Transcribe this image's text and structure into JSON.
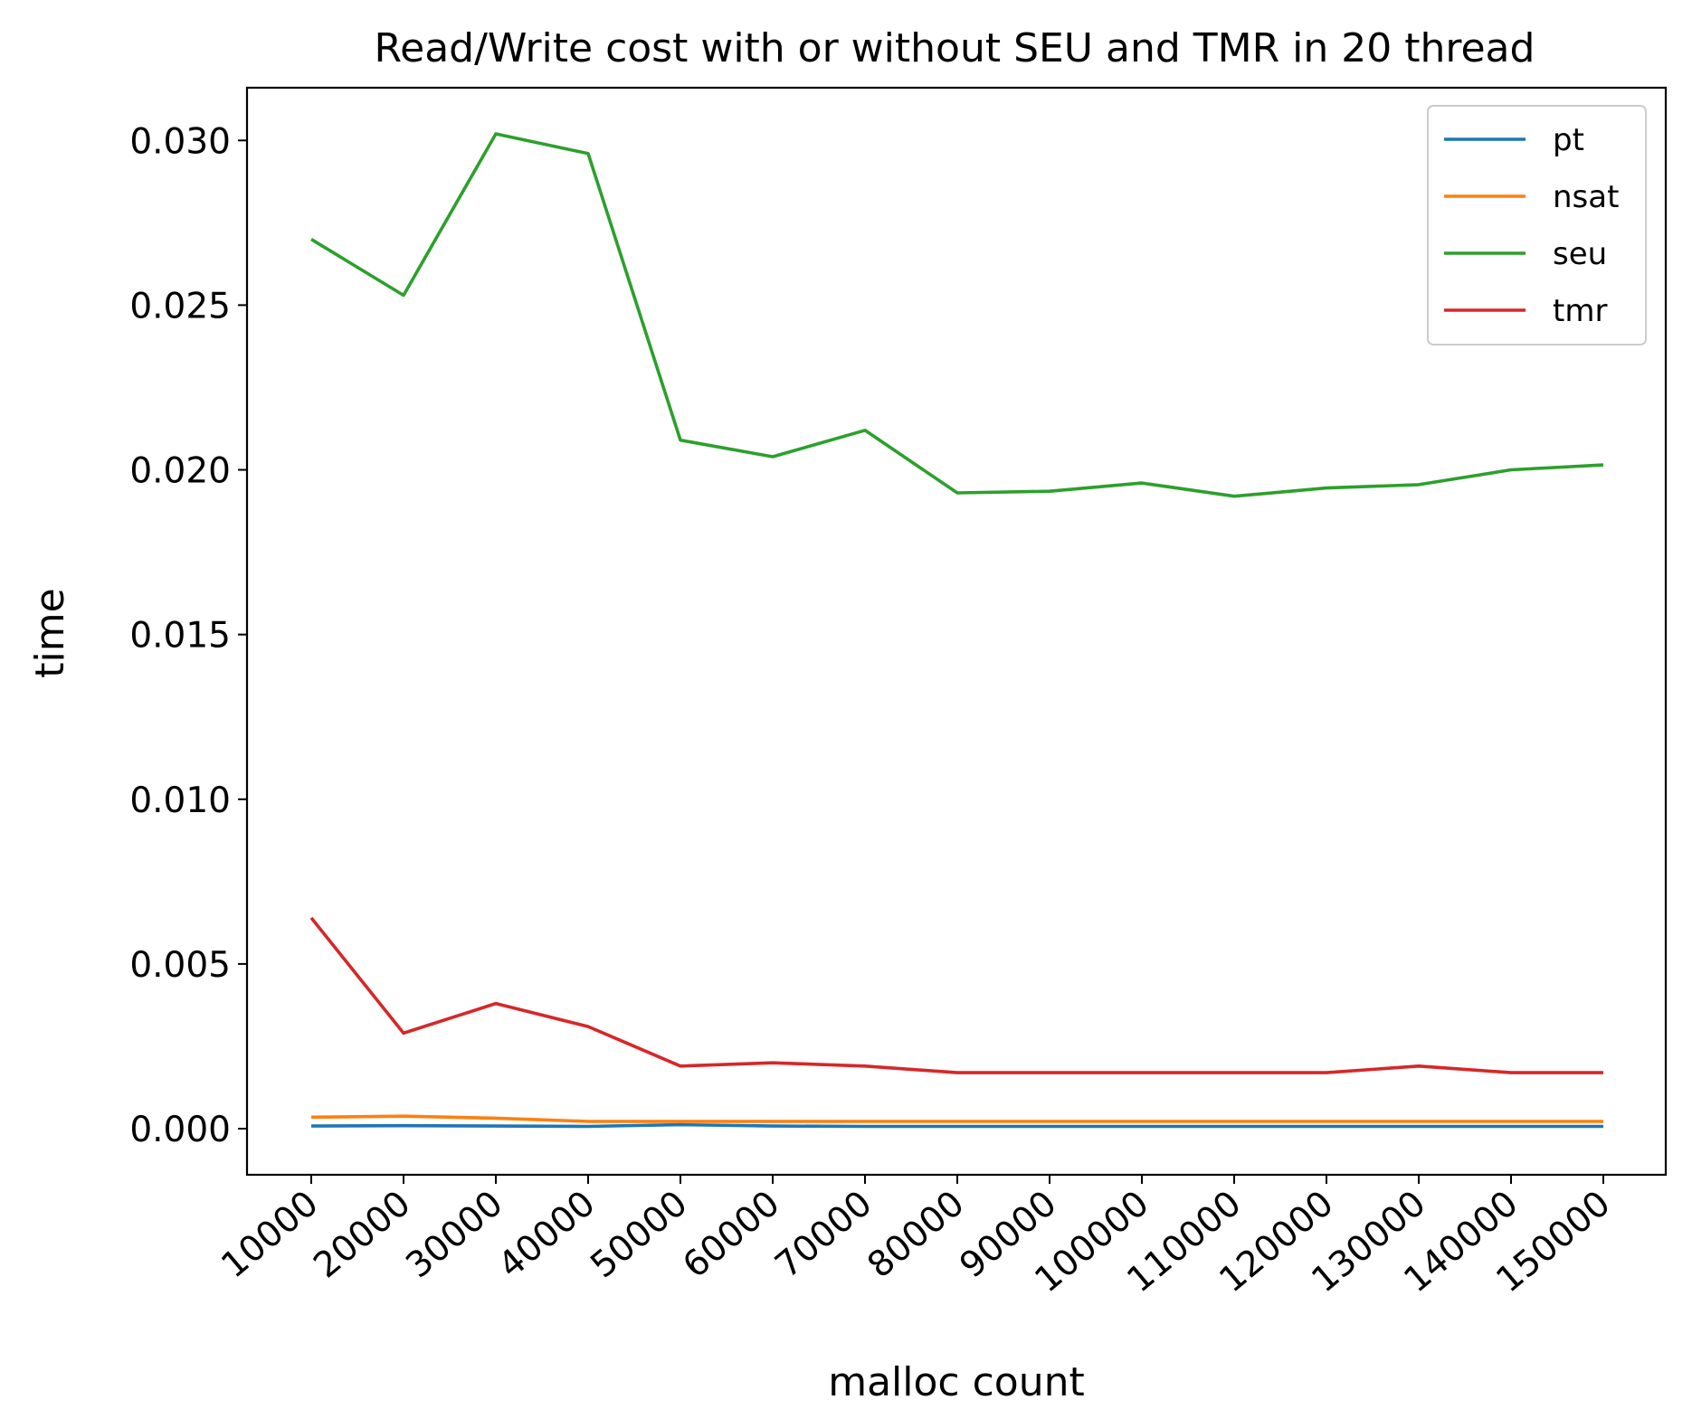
{
  "chart_data": {
    "type": "line",
    "title": "Read/Write cost with or without SEU and TMR in 20 thread",
    "xlabel": "malloc count",
    "ylabel": "time",
    "categories": [
      "10000",
      "20000",
      "30000",
      "40000",
      "50000",
      "60000",
      "70000",
      "80000",
      "90000",
      "100000",
      "110000",
      "120000",
      "130000",
      "140000",
      "150000"
    ],
    "ylim": [
      -0.0014,
      0.0316
    ],
    "yticks": [
      "0.000",
      "0.005",
      "0.010",
      "0.015",
      "0.020",
      "0.025",
      "0.030"
    ],
    "ytick_values": [
      0,
      0.005,
      0.01,
      0.015,
      0.02,
      0.025,
      0.03
    ],
    "grid": false,
    "legend_position": "top-right",
    "series": [
      {
        "name": "pt",
        "color": "#1f77b4",
        "values": [
          8e-05,
          9e-05,
          8e-05,
          7e-05,
          0.00012,
          8e-05,
          7e-05,
          7e-05,
          7e-05,
          7e-05,
          7e-05,
          7e-05,
          7e-05,
          7e-05,
          7e-05
        ]
      },
      {
        "name": "nsat",
        "color": "#ff7f0e",
        "values": [
          0.00035,
          0.00038,
          0.00032,
          0.00022,
          0.00022,
          0.00022,
          0.00022,
          0.00022,
          0.00022,
          0.00022,
          0.00022,
          0.00022,
          0.00022,
          0.00022,
          0.00022
        ]
      },
      {
        "name": "seu",
        "color": "#2ca02c",
        "values": [
          0.027,
          0.0253,
          0.0302,
          0.0296,
          0.0209,
          0.0204,
          0.0212,
          0.0193,
          0.01935,
          0.0196,
          0.0192,
          0.01945,
          0.01955,
          0.02,
          0.02015
        ]
      },
      {
        "name": "tmr",
        "color": "#d62728",
        "values": [
          0.0064,
          0.0029,
          0.0038,
          0.0031,
          0.0019,
          0.002,
          0.0019,
          0.0017,
          0.0017,
          0.0017,
          0.0017,
          0.0017,
          0.0019,
          0.0017,
          0.0017
        ]
      }
    ]
  }
}
